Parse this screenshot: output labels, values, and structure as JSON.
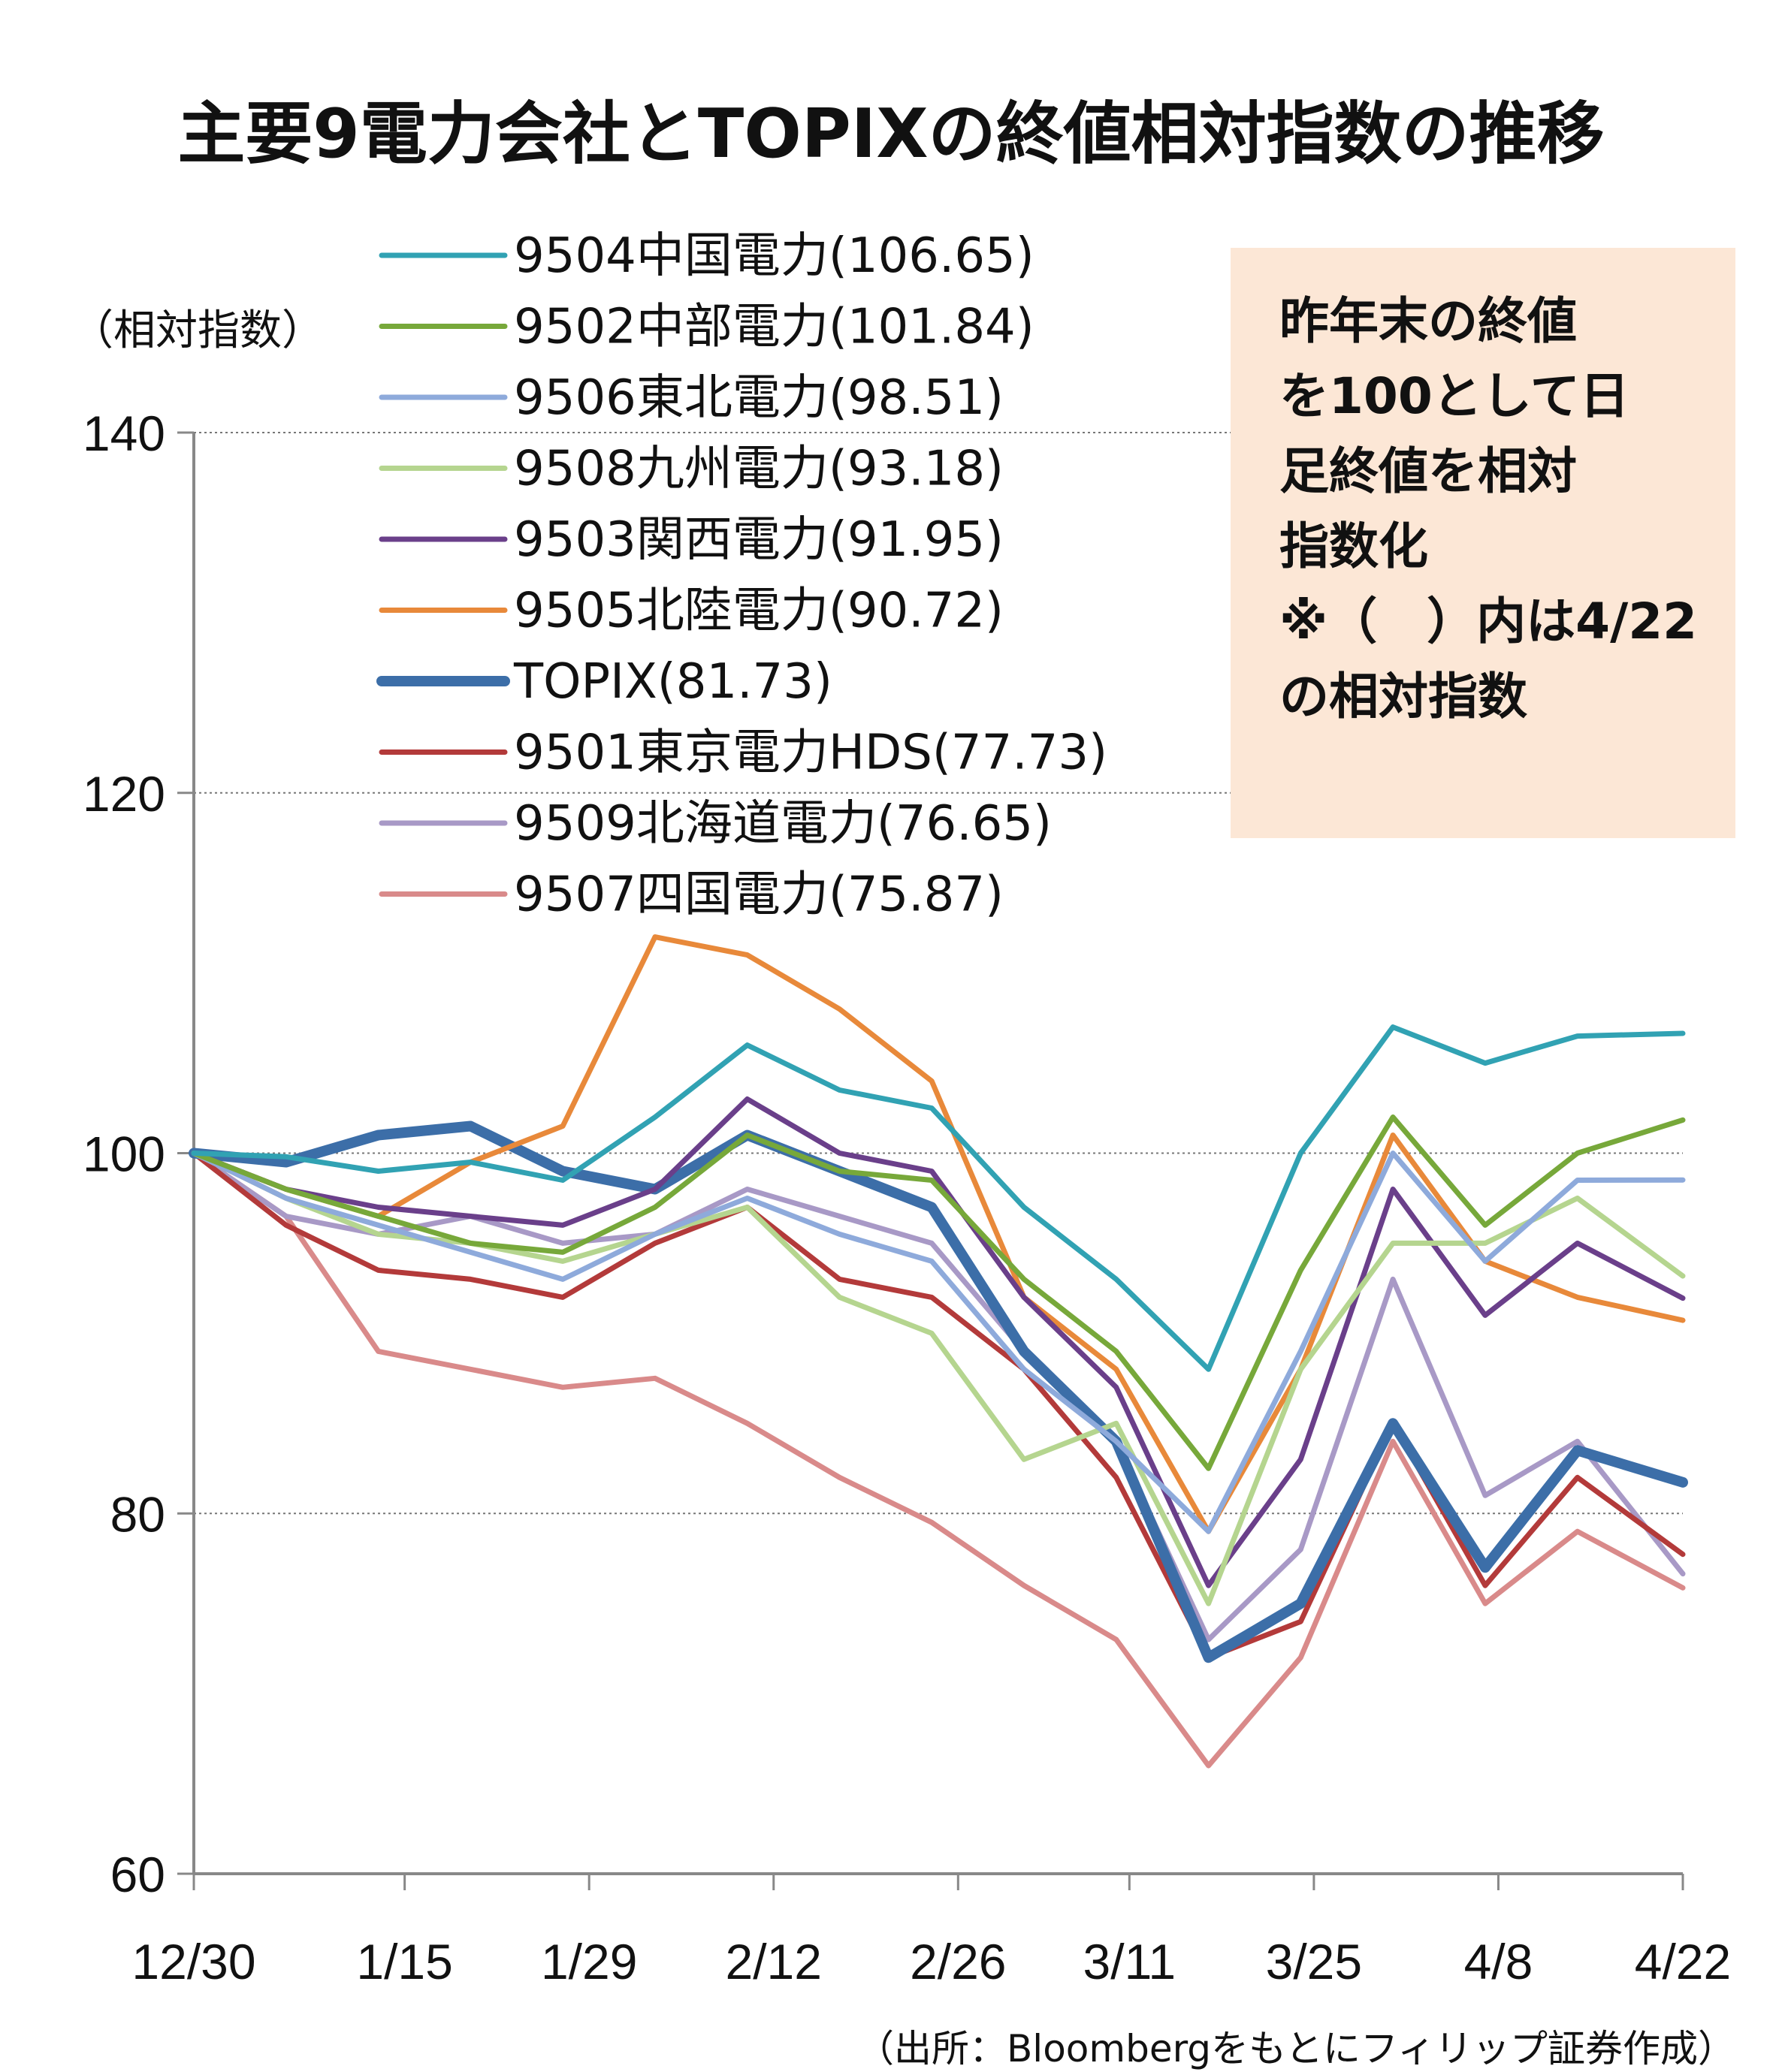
{
  "title": "主要9電力会社とTOPIXの終値相対指数の推移",
  "y_unit_label": "（相対指数）",
  "note_box": {
    "lines": [
      "昨年末の終値",
      "を100として日",
      "足終値を相対",
      "指数化",
      "※（　）内は4/22",
      "の相対指数"
    ]
  },
  "source": "（出所：Bloombergをもとにフィリップ証券作成）",
  "chart_data": {
    "type": "line",
    "title": "主要9電力会社とTOPIXの終値相対指数の推移",
    "ylabel": "（相対指数）",
    "xlabel": "",
    "ylim": [
      60,
      140
    ],
    "yticks": [
      60,
      80,
      100,
      120,
      140
    ],
    "x_tick_labels": [
      "12/30",
      "1/15",
      "1/29",
      "2/12",
      "2/26",
      "3/11",
      "3/25",
      "4/8",
      "4/22"
    ],
    "x_range": [
      "12/30",
      "4/22"
    ],
    "grid": "horizontal dotted",
    "legend_position": "top-left",
    "x": [
      "12/30",
      "1/6",
      "1/13",
      "1/20",
      "1/27",
      "2/3",
      "2/10",
      "2/17",
      "2/24",
      "3/3",
      "3/10",
      "3/17",
      "3/24",
      "3/31",
      "4/7",
      "4/14",
      "4/22"
    ],
    "series": [
      {
        "name": "9504中国電力",
        "label": "(106.65)",
        "color": "#31a2b3",
        "width": 7,
        "values": [
          100,
          99.8,
          99,
          99.5,
          98.5,
          102,
          106,
          103.5,
          102.5,
          97,
          93,
          88,
          100,
          107,
          105,
          106.5,
          106.65
        ]
      },
      {
        "name": "9502中部電力",
        "label": "(101.84)",
        "color": "#77a83a",
        "width": 7,
        "values": [
          100,
          98,
          96.5,
          95,
          94.5,
          97,
          101,
          99,
          98.5,
          93,
          89,
          82.5,
          93.5,
          102,
          96,
          100,
          101.84
        ]
      },
      {
        "name": "9506東北電力",
        "label": "(98.51)",
        "color": "#8eaadb",
        "width": 7,
        "values": [
          100,
          97.5,
          96,
          94.5,
          93,
          95.5,
          97.5,
          95.5,
          94,
          88,
          84,
          79,
          89,
          100,
          94,
          98.5,
          98.51
        ]
      },
      {
        "name": "9508九州電力",
        "label": "(93.18)",
        "color": "#b5d58f",
        "width": 7,
        "values": [
          100,
          97.5,
          95.5,
          95,
          94,
          95.5,
          97,
          92,
          90,
          83,
          85,
          75,
          88,
          95,
          95,
          97.5,
          93.18
        ]
      },
      {
        "name": "9503関西電力",
        "label": "(91.95)",
        "color": "#6a3f8a",
        "width": 7,
        "values": [
          100,
          98,
          97,
          96.5,
          96,
          98,
          103,
          100,
          99,
          92,
          87,
          76,
          83,
          98,
          91,
          95,
          91.95
        ]
      },
      {
        "name": "9505北陸電力",
        "label": "(90.72)",
        "color": "#e8893a",
        "width": 7,
        "values": [
          100,
          98,
          96.5,
          99.5,
          101.5,
          112,
          111,
          108,
          104,
          92,
          88,
          79,
          88,
          101,
          94,
          92,
          90.72
        ]
      },
      {
        "name": "TOPIX",
        "label": "(81.73)",
        "color": "#3c6ea8",
        "width": 14,
        "values": [
          100,
          99.5,
          101,
          101.5,
          99,
          98,
          101,
          99,
          97,
          89,
          84,
          72,
          75,
          85,
          77,
          83.5,
          81.73
        ]
      },
      {
        "name": "9501東京電力HDS",
        "label": "(77.73)",
        "color": "#b33a3a",
        "width": 7,
        "values": [
          100,
          96,
          93.5,
          93,
          92,
          95,
          97,
          93,
          92,
          88,
          82,
          72,
          74,
          85,
          76,
          82,
          77.73
        ]
      },
      {
        "name": "9509北海道電力",
        "label": "(76.65)",
        "color": "#a899c6",
        "width": 7,
        "values": [
          100,
          96.5,
          95.5,
          96.5,
          95,
          95.5,
          98,
          96.5,
          95,
          89,
          84,
          73,
          78,
          93,
          81,
          84,
          76.65
        ]
      },
      {
        "name": "9507四国電力",
        "label": "(75.87)",
        "color": "#d98a8a",
        "width": 7,
        "values": [
          100,
          96.5,
          89,
          88,
          87,
          87.5,
          85,
          82,
          79.5,
          76,
          73,
          66,
          72,
          84,
          75,
          79,
          75.87
        ]
      }
    ]
  }
}
